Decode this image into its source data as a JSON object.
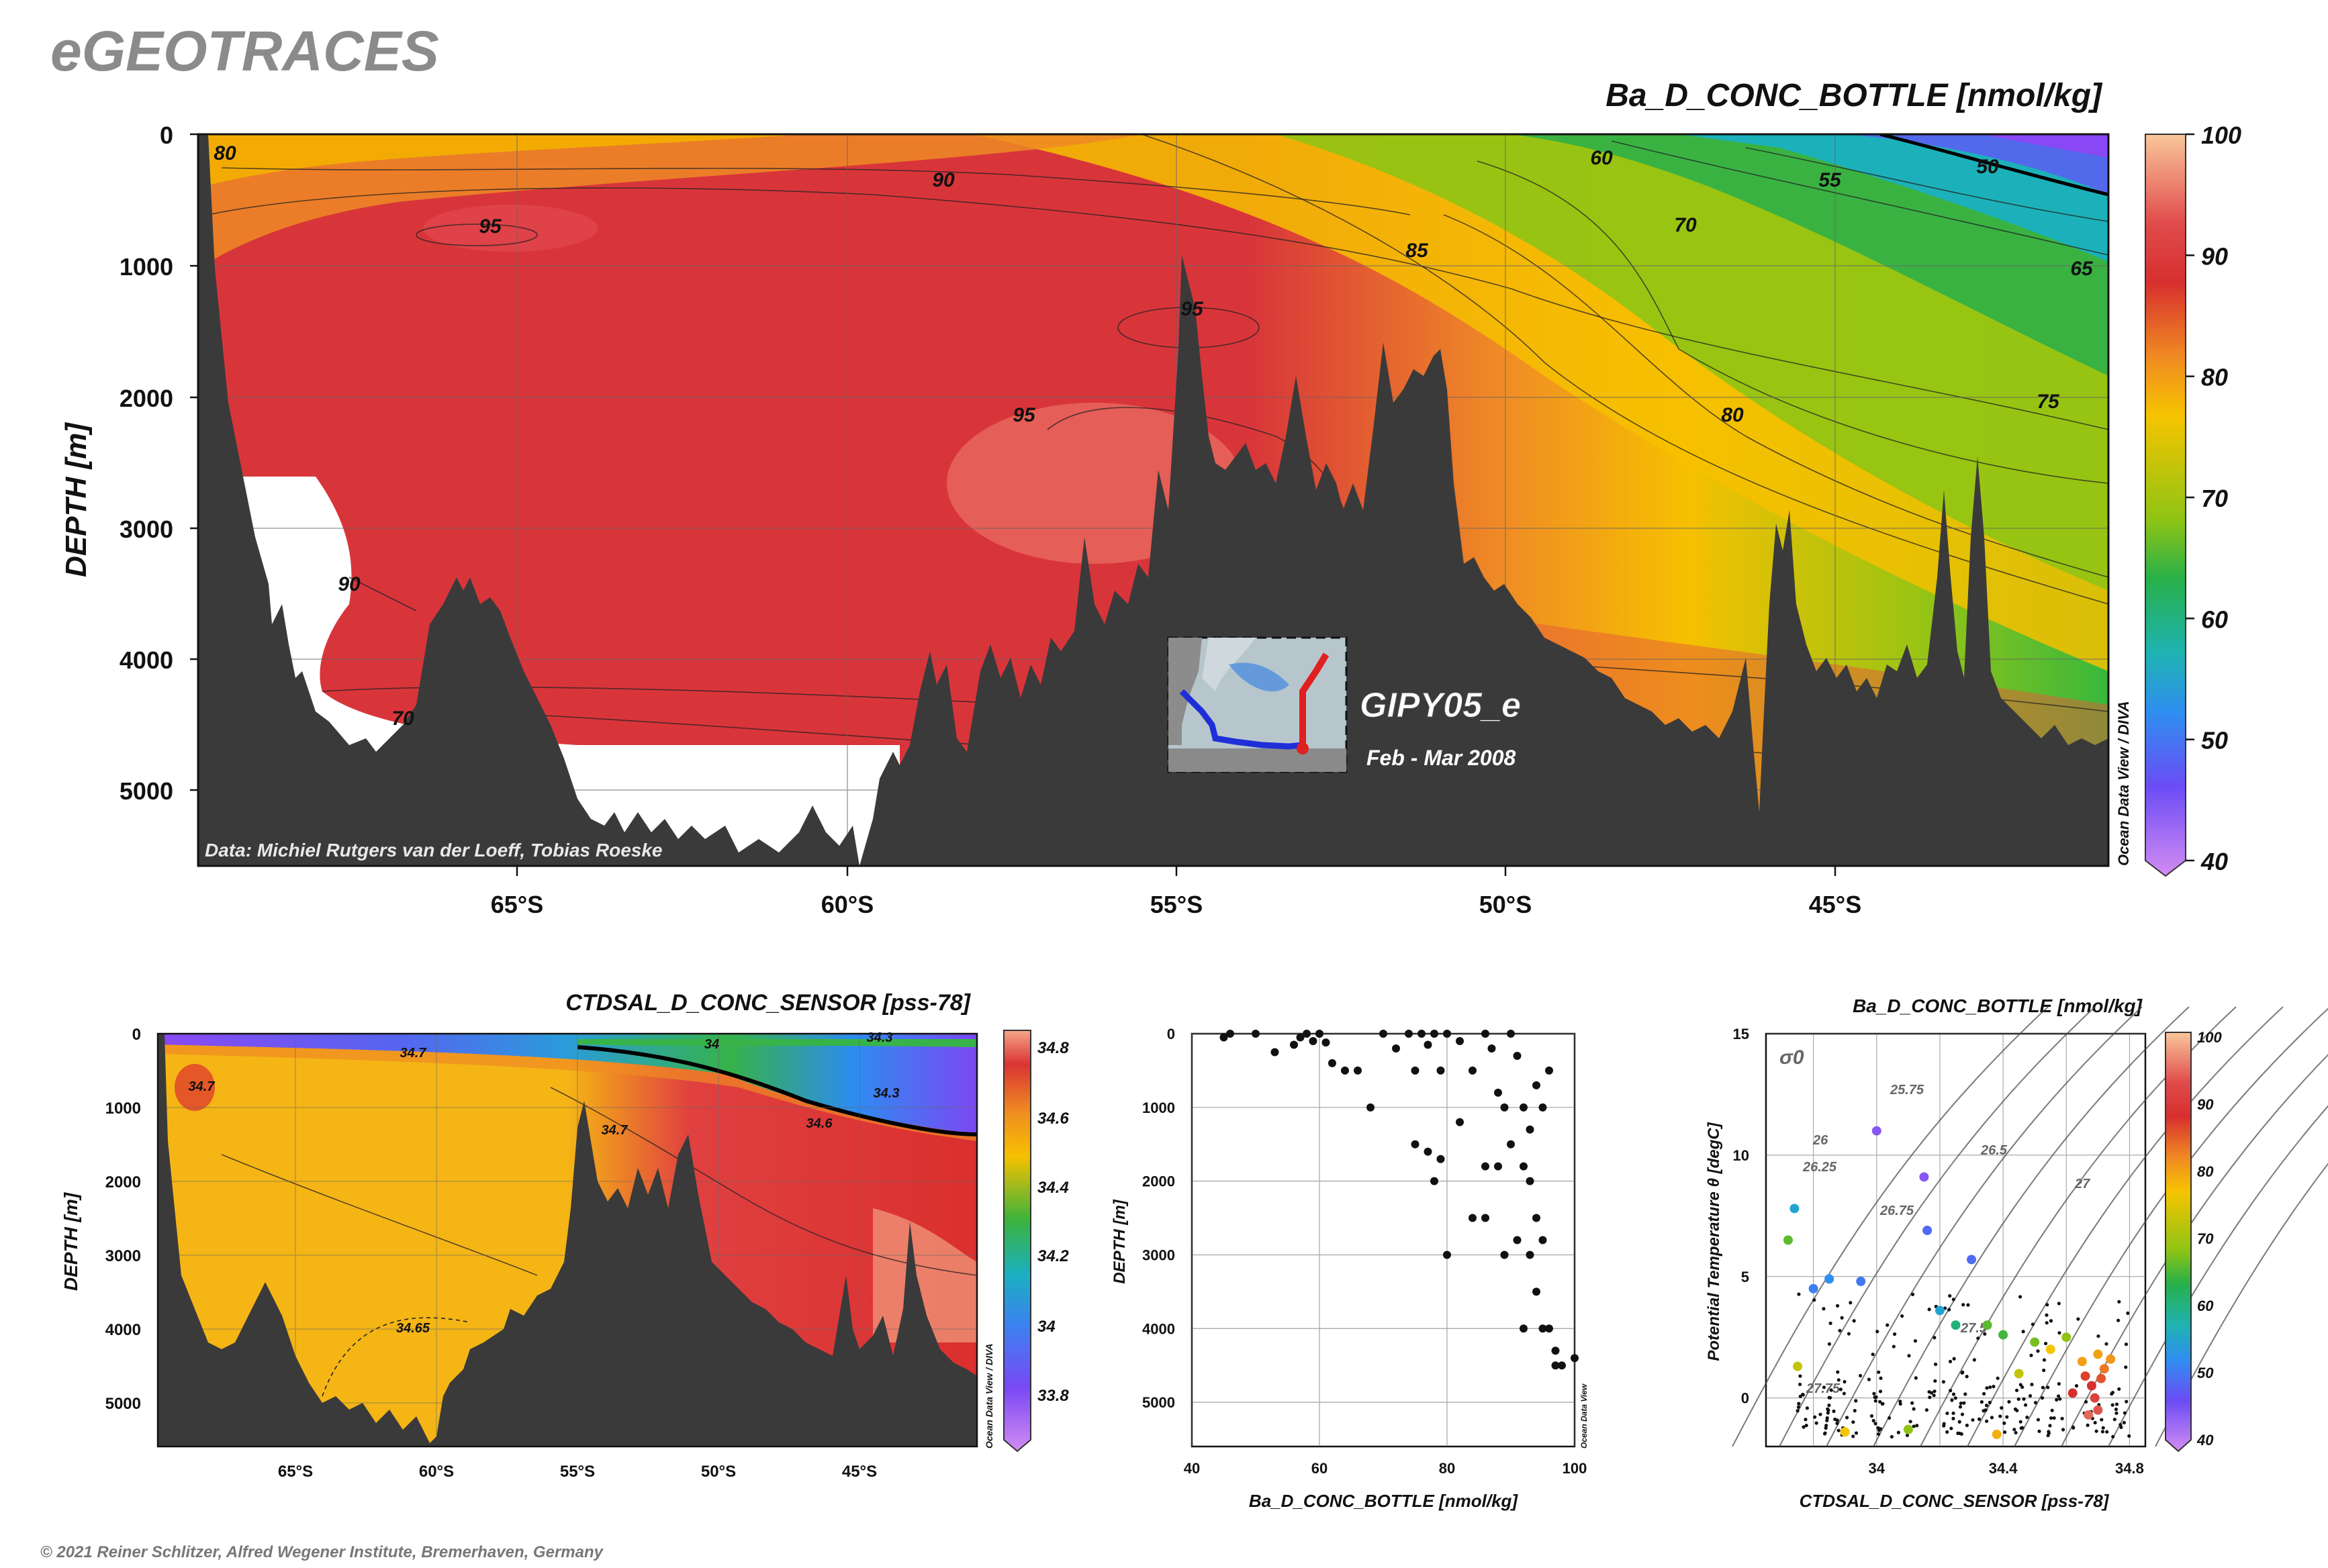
{
  "header": {
    "logo": "eGEOTRACES",
    "main_title": "Ba_D_CONC_BOTTLE [nmol/kg]",
    "credit": "Data: Michiel Rutgers van der Loeff, Tobias Roeske",
    "cruise": "GIPY05_e",
    "date_range": "Feb - Mar 2008",
    "side_credit": "Ocean Data View / DIVA",
    "footer": "© 2021 Reiner Schlitzer, Alfred Wegener Institute, Bremerhaven, Germany"
  },
  "colors": {
    "bathymetry": "#3a3a3a",
    "high": "#d63a3a",
    "mid": "#f4b800",
    "low": "#8a4cff"
  },
  "chart_data": [
    {
      "type": "heatmap",
      "title": "Ba_D_CONC_BOTTLE [nmol/kg]",
      "xlabel": "",
      "ylabel": "DEPTH [m]",
      "x_ticks": [
        "65°S",
        "60°S",
        "55°S",
        "50°S",
        "45°S"
      ],
      "y_ticks": [
        "0",
        "1000",
        "2000",
        "3000",
        "4000",
        "5000"
      ],
      "colorbar_ticks": [
        "100",
        "90",
        "80",
        "70",
        "60",
        "50",
        "40"
      ],
      "contour_labels": [
        "80",
        "90",
        "95",
        "60",
        "55",
        "50",
        "70",
        "85",
        "95",
        "95",
        "80",
        "75",
        "65",
        "90",
        "70"
      ],
      "xlim": [
        -70,
        -41
      ],
      "ylim": [
        0,
        5600
      ],
      "zlim": [
        40,
        100
      ]
    },
    {
      "type": "heatmap",
      "title": "CTDSAL_D_CONC_SENSOR [pss-78]",
      "ylabel": "DEPTH [m]",
      "x_ticks": [
        "65°S",
        "60°S",
        "55°S",
        "50°S",
        "45°S"
      ],
      "y_ticks": [
        "0",
        "1000",
        "2000",
        "3000",
        "4000",
        "5000"
      ],
      "colorbar_ticks": [
        "34.8",
        "34.6",
        "34.4",
        "34.2",
        "34",
        "33.8"
      ],
      "contour_labels": [
        "34.7",
        "34.7",
        "34.3",
        "34.7",
        "34.6",
        "34.65",
        "34.3",
        "34"
      ],
      "zlim": [
        33.7,
        34.85
      ]
    },
    {
      "type": "scatter",
      "xlabel": "Ba_D_CONC_BOTTLE [nmol/kg]",
      "ylabel": "DEPTH [m]",
      "x_ticks": [
        "40",
        "60",
        "80",
        "100"
      ],
      "y_ticks": [
        "0",
        "1000",
        "2000",
        "3000",
        "4000",
        "5000"
      ],
      "xlim": [
        40,
        100
      ],
      "ylim": [
        0,
        5600
      ],
      "points": [
        {
          "x": 45,
          "y": 50
        },
        {
          "x": 46,
          "y": 0
        },
        {
          "x": 50,
          "y": 0
        },
        {
          "x": 53,
          "y": 250
        },
        {
          "x": 56,
          "y": 150
        },
        {
          "x": 57,
          "y": 50
        },
        {
          "x": 58,
          "y": 0
        },
        {
          "x": 59,
          "y": 100
        },
        {
          "x": 60,
          "y": 0
        },
        {
          "x": 61,
          "y": 120
        },
        {
          "x": 62,
          "y": 400
        },
        {
          "x": 64,
          "y": 500
        },
        {
          "x": 66,
          "y": 500
        },
        {
          "x": 68,
          "y": 1000
        },
        {
          "x": 70,
          "y": 0
        },
        {
          "x": 72,
          "y": 200
        },
        {
          "x": 74,
          "y": 0
        },
        {
          "x": 75,
          "y": 500
        },
        {
          "x": 76,
          "y": 0
        },
        {
          "x": 77,
          "y": 150
        },
        {
          "x": 78,
          "y": 0
        },
        {
          "x": 79,
          "y": 500
        },
        {
          "x": 80,
          "y": 0
        },
        {
          "x": 82,
          "y": 100
        },
        {
          "x": 84,
          "y": 500
        },
        {
          "x": 86,
          "y": 0
        },
        {
          "x": 87,
          "y": 200
        },
        {
          "x": 88,
          "y": 800
        },
        {
          "x": 89,
          "y": 1000
        },
        {
          "x": 90,
          "y": 0
        },
        {
          "x": 91,
          "y": 300
        },
        {
          "x": 92,
          "y": 1000
        },
        {
          "x": 93,
          "y": 1300
        },
        {
          "x": 94,
          "y": 700
        },
        {
          "x": 95,
          "y": 1000
        },
        {
          "x": 96,
          "y": 500
        },
        {
          "x": 75,
          "y": 1500
        },
        {
          "x": 77,
          "y": 1600
        },
        {
          "x": 78,
          "y": 2000
        },
        {
          "x": 79,
          "y": 1700
        },
        {
          "x": 82,
          "y": 1200
        },
        {
          "x": 86,
          "y": 1800
        },
        {
          "x": 88,
          "y": 1800
        },
        {
          "x": 90,
          "y": 1500
        },
        {
          "x": 92,
          "y": 1800
        },
        {
          "x": 93,
          "y": 2000
        },
        {
          "x": 94,
          "y": 2500
        },
        {
          "x": 95,
          "y": 2800
        },
        {
          "x": 91,
          "y": 2800
        },
        {
          "x": 84,
          "y": 2500
        },
        {
          "x": 86,
          "y": 2500
        },
        {
          "x": 80,
          "y": 3000
        },
        {
          "x": 89,
          "y": 3000
        },
        {
          "x": 93,
          "y": 3000
        },
        {
          "x": 94,
          "y": 3500
        },
        {
          "x": 95,
          "y": 4000
        },
        {
          "x": 96,
          "y": 4000
        },
        {
          "x": 92,
          "y": 4000
        },
        {
          "x": 97,
          "y": 4300
        },
        {
          "x": 98,
          "y": 4500
        },
        {
          "x": 100,
          "y": 4400
        },
        {
          "x": 97,
          "y": 4500
        }
      ]
    },
    {
      "type": "scatter",
      "title": "Ba_D_CONC_BOTTLE [nmol/kg]",
      "xlabel": "CTDSAL_D_CONC_SENSOR [pss-78]",
      "ylabel": "Potential Temperature θ [degC]",
      "x_ticks": [
        "34",
        "34.4",
        "34.8"
      ],
      "y_ticks": [
        "15",
        "10",
        "5",
        "0"
      ],
      "colorbar_ticks": [
        "100",
        "90",
        "80",
        "70",
        "60",
        "50",
        "40"
      ],
      "sigma_labels": [
        "σ0",
        "25.75",
        "26.25",
        "26.5",
        "26.75",
        "27",
        "27.5",
        "26",
        "27.75"
      ],
      "xlim": [
        33.65,
        34.85
      ],
      "ylim": [
        -2,
        15
      ],
      "points": [
        {
          "x": 33.72,
          "y": 6.5,
          "v": 74
        },
        {
          "x": 33.74,
          "y": 7.8,
          "v": 63
        },
        {
          "x": 33.8,
          "y": 4.5,
          "v": 58
        },
        {
          "x": 33.85,
          "y": 4.9,
          "v": 60
        },
        {
          "x": 33.95,
          "y": 4.8,
          "v": 57
        },
        {
          "x": 34.0,
          "y": 11.0,
          "v": 47
        },
        {
          "x": 34.15,
          "y": 9.1,
          "v": 47
        },
        {
          "x": 34.16,
          "y": 6.9,
          "v": 55
        },
        {
          "x": 34.2,
          "y": 3.6,
          "v": 63
        },
        {
          "x": 34.25,
          "y": 3.0,
          "v": 68
        },
        {
          "x": 34.3,
          "y": 5.7,
          "v": 55
        },
        {
          "x": 34.35,
          "y": 3.0,
          "v": 74
        },
        {
          "x": 34.4,
          "y": 2.6,
          "v": 72
        },
        {
          "x": 34.45,
          "y": 1.0,
          "v": 80
        },
        {
          "x": 34.55,
          "y": 2.0,
          "v": 82
        },
        {
          "x": 34.6,
          "y": 2.5,
          "v": 78
        },
        {
          "x": 34.65,
          "y": 1.5,
          "v": 85
        },
        {
          "x": 34.68,
          "y": 0.5,
          "v": 92
        },
        {
          "x": 34.69,
          "y": 0.0,
          "v": 93
        },
        {
          "x": 34.7,
          "y": -0.5,
          "v": 94
        },
        {
          "x": 34.67,
          "y": -0.7,
          "v": 95
        },
        {
          "x": 34.71,
          "y": 0.8,
          "v": 90
        },
        {
          "x": 34.72,
          "y": 1.2,
          "v": 88
        },
        {
          "x": 34.74,
          "y": 1.6,
          "v": 86
        },
        {
          "x": 34.7,
          "y": 1.8,
          "v": 85
        },
        {
          "x": 34.62,
          "y": 0.2,
          "v": 92
        },
        {
          "x": 34.66,
          "y": 0.9,
          "v": 91
        },
        {
          "x": 33.75,
          "y": 1.3,
          "v": 80
        },
        {
          "x": 33.9,
          "y": -1.4,
          "v": 82
        },
        {
          "x": 34.38,
          "y": -1.5,
          "v": 84
        },
        {
          "x": 34.1,
          "y": -1.3,
          "v": 78
        },
        {
          "x": 34.5,
          "y": 2.3,
          "v": 76
        }
      ]
    }
  ]
}
